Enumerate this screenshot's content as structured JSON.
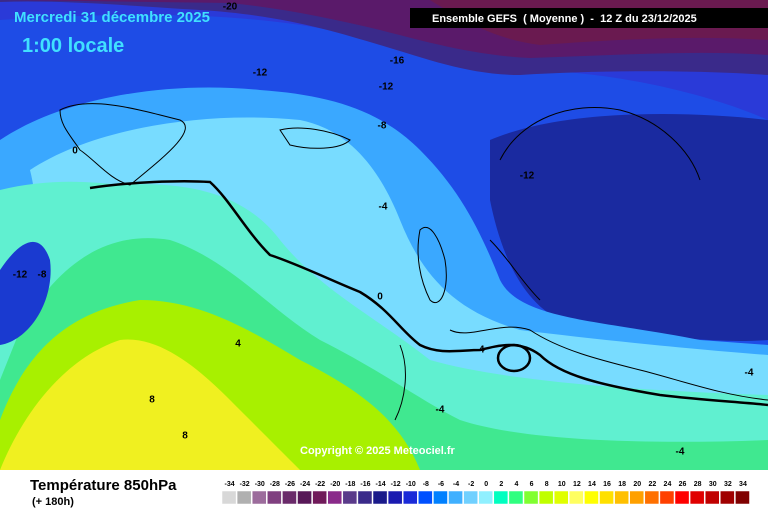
{
  "header": {
    "title": "Mercredi 31 décembre 2025",
    "subtitle": "1:00 locale",
    "run": "Ensemble GEFS  ( Moyenne )  -  12 Z du 23/12/2025"
  },
  "map": {
    "contour_labels": [
      "-20",
      "-16",
      "-12",
      "-12",
      "-8",
      "0",
      "-12",
      "-4",
      "-12",
      "-8",
      "0",
      "-4",
      "4",
      "8",
      "8",
      "-4",
      "-4",
      "-4"
    ]
  },
  "copyright": "Copyright © 2025 Meteociel.fr",
  "footer": {
    "title": "Température 850hPa",
    "lead": "(+ 180h)"
  },
  "legend": {
    "ticks": [
      -34,
      -32,
      -30,
      -28,
      -26,
      -24,
      -22,
      -20,
      -18,
      -16,
      -14,
      -12,
      -10,
      -8,
      -6,
      -4,
      -2,
      0,
      2,
      4,
      6,
      8,
      10,
      12,
      14,
      16,
      18,
      20,
      22,
      24,
      26,
      28,
      30,
      32,
      34
    ],
    "colors": [
      "#d8d8d8",
      "#b0b0b0",
      "#9c6c9c",
      "#804080",
      "#6a2a6a",
      "#581858",
      "#701a5a",
      "#8a2a8a",
      "#5a3a8a",
      "#3a2a8a",
      "#1a1a8a",
      "#1a1ab0",
      "#1a2ad8",
      "#0050ff",
      "#0080ff",
      "#40b0ff",
      "#70d0ff",
      "#90f0ff",
      "#00ffc0",
      "#30ff80",
      "#80ff30",
      "#c0ff00",
      "#e0ff00",
      "#ffff60",
      "#ffff00",
      "#ffe000",
      "#ffc000",
      "#ffa000",
      "#ff7000",
      "#ff4000",
      "#ff0000",
      "#e00000",
      "#c00000",
      "#a00000",
      "#800000"
    ]
  }
}
